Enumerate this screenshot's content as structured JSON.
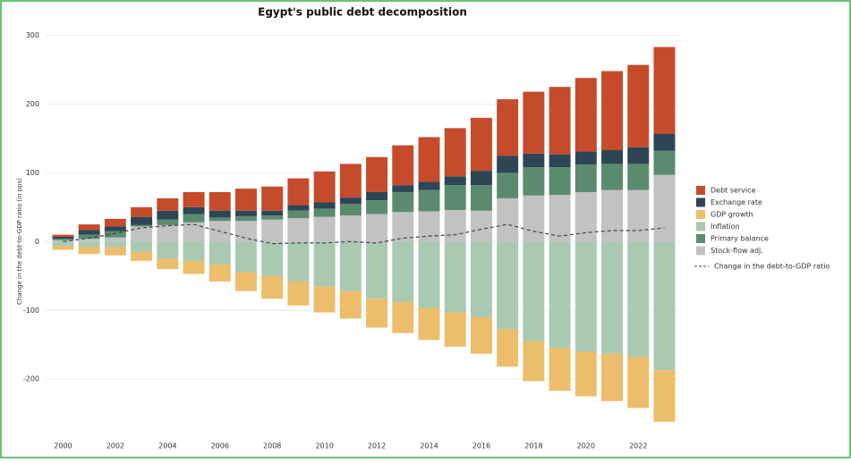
{
  "chart_data": {
    "type": "stacked_bar",
    "title": "Egypt's public debt decomposition",
    "y_label": "Change in the debt-to-GDP ratio (in pps)",
    "x": [
      2000,
      2001,
      2002,
      2003,
      2004,
      2005,
      2006,
      2007,
      2008,
      2009,
      2010,
      2011,
      2012,
      2013,
      2014,
      2015,
      2016,
      2017,
      2018,
      2019,
      2020,
      2021,
      2022,
      2023
    ],
    "series": [
      {
        "name": "Debt service",
        "color": "#c64b2b",
        "values": [
          3,
          8,
          11,
          14,
          18,
          22,
          27,
          32,
          35,
          39,
          45,
          49,
          51,
          58,
          65,
          70,
          77,
          82,
          90,
          98,
          107,
          115,
          120,
          126
        ]
      },
      {
        "name": "Exchange rate",
        "color": "#2c4656",
        "values": [
          3,
          7,
          7,
          12,
          13,
          10,
          10,
          8,
          7,
          8,
          9,
          9,
          12,
          10,
          12,
          13,
          21,
          25,
          20,
          19,
          19,
          20,
          24,
          25
        ]
      },
      {
        "name": "GDP growth",
        "color": "#ecbd6b",
        "values": [
          -6,
          -10,
          -12,
          -13,
          -15,
          -19,
          -25,
          -27,
          -33,
          -35,
          -38,
          -40,
          -42,
          -45,
          -46,
          -50,
          -53,
          -55,
          -58,
          -62,
          -65,
          -69,
          -74,
          -75
        ]
      },
      {
        "name": "Inflation",
        "color": "#a9c9b1",
        "values": [
          -6,
          -8,
          -8,
          -15,
          -25,
          -28,
          -33,
          -45,
          -50,
          -58,
          -65,
          -72,
          -83,
          -88,
          -97,
          -103,
          -110,
          -127,
          -145,
          -155,
          -160,
          -163,
          -168,
          -187
        ]
      },
      {
        "name": "Primary balance",
        "color": "#5a8b6f",
        "values": [
          2,
          6,
          9,
          2,
          8,
          12,
          5,
          7,
          6,
          11,
          12,
          17,
          20,
          29,
          31,
          36,
          37,
          37,
          41,
          40,
          40,
          38,
          38,
          35
        ]
      },
      {
        "name": "Stock-flow adj.",
        "color": "#c2c2c2",
        "values": [
          2,
          4,
          6,
          22,
          24,
          28,
          30,
          30,
          32,
          34,
          36,
          38,
          40,
          43,
          44,
          46,
          45,
          63,
          67,
          68,
          72,
          75,
          75,
          97
        ]
      }
    ],
    "line": {
      "name": "Change in the debt-to-GDP ratio",
      "color": "#444444",
      "values": [
        0,
        5,
        12,
        20,
        23,
        25,
        15,
        5,
        -3,
        -2,
        -2,
        0,
        -2,
        5,
        8,
        10,
        18,
        25,
        15,
        8,
        13,
        16,
        16,
        20
      ]
    },
    "xlim": [
      1999.3,
      2023.6
    ],
    "xticks": [
      2000,
      2002,
      2004,
      2006,
      2008,
      2010,
      2012,
      2014,
      2016,
      2018,
      2020,
      2022
    ],
    "ylim": [
      -305,
      315
    ],
    "yticks": [
      -200,
      -100,
      0,
      100,
      200,
      300
    ],
    "grid": true
  }
}
